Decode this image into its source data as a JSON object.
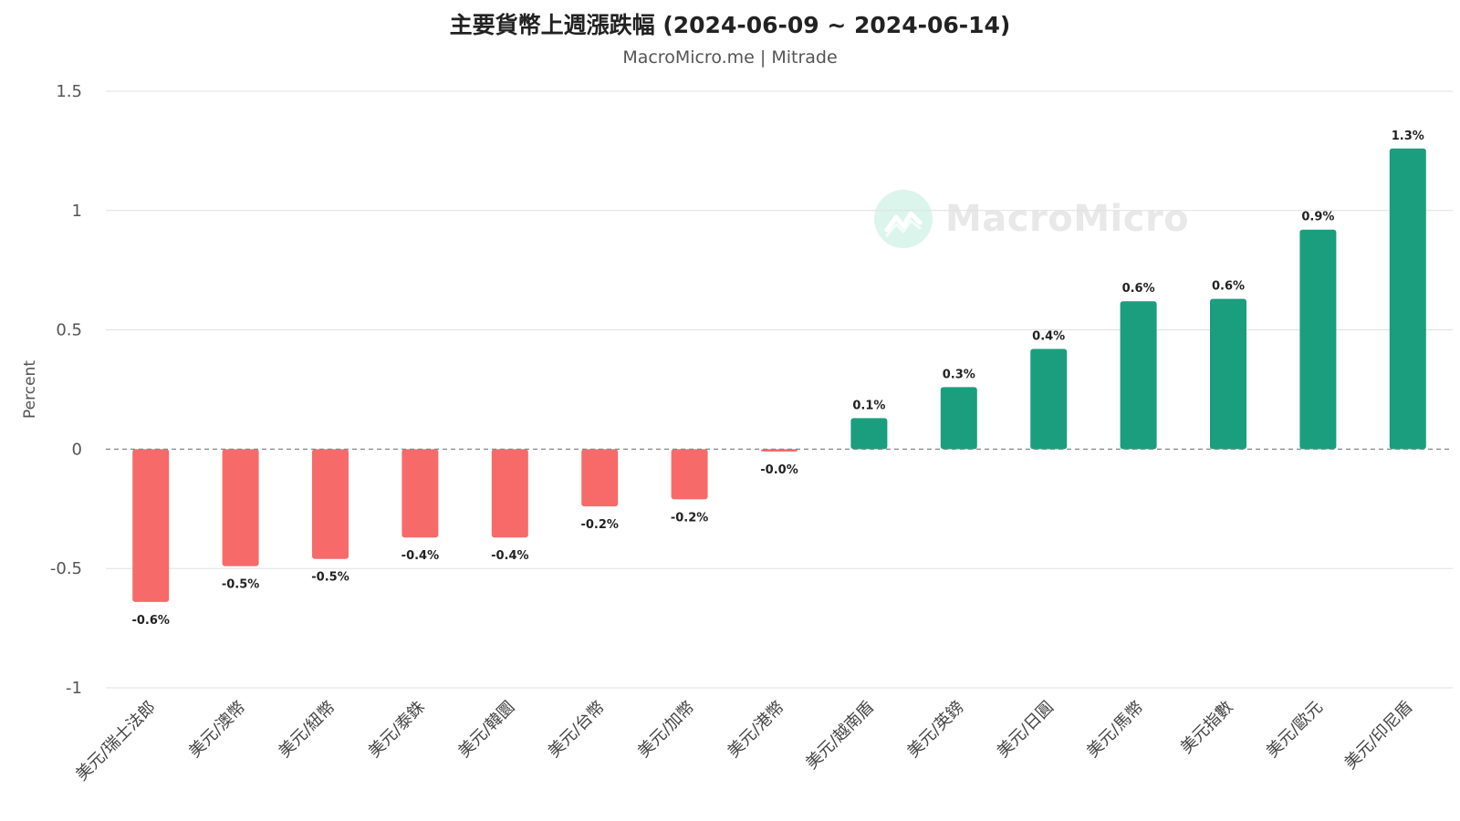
{
  "title": "主要貨幣上週漲跌幅 (2024-06-09 ~ 2024-06-14)",
  "subtitle": "MacroMicro.me | Mitrade",
  "watermark": "MacroMicro",
  "colors": {
    "positive": "#1a9e7e",
    "negative": "#f66a6a",
    "grid": "#e0e0e0",
    "zero_line": "#888888"
  },
  "chart_data": {
    "type": "bar",
    "ylabel": "Percent",
    "ylim": [
      -1,
      1.5
    ],
    "yticks": [
      1.5,
      1,
      0.5,
      0,
      -0.5,
      -1
    ],
    "ytick_labels": [
      "1.5",
      "1",
      "0.5",
      "0",
      "-0.5",
      "-1"
    ],
    "grid": true,
    "categories": [
      "美元/瑞士法郎",
      "美元/澳幣",
      "美元/紐幣",
      "美元/泰銖",
      "美元/韓圜",
      "美元/台幣",
      "美元/加幣",
      "美元/港幣",
      "美元/越南盾",
      "美元/英鎊",
      "美元/日圓",
      "美元/馬幣",
      "美元指數",
      "美元/歐元",
      "美元/印尼盾"
    ],
    "values": [
      -0.64,
      -0.49,
      -0.46,
      -0.37,
      -0.37,
      -0.24,
      -0.21,
      -0.01,
      0.13,
      0.26,
      0.42,
      0.62,
      0.63,
      0.92,
      1.26
    ],
    "data_labels": [
      "-0.6%",
      "-0.5%",
      "-0.5%",
      "-0.4%",
      "-0.4%",
      "-0.2%",
      "-0.2%",
      "-0.0%",
      "0.1%",
      "0.3%",
      "0.4%",
      "0.6%",
      "0.6%",
      "0.9%",
      "1.3%"
    ]
  }
}
